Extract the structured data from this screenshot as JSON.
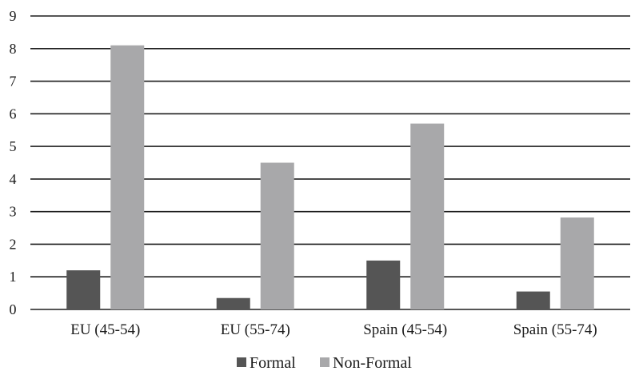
{
  "chart_data": {
    "type": "bar",
    "title": "",
    "xlabel": "",
    "ylabel": "",
    "categories": [
      "EU (45-54)",
      "EU (55-74)",
      "Spain (45-54)",
      "Spain (55-74)"
    ],
    "series": [
      {
        "name": "Formal",
        "color": "#555555",
        "values": [
          1.2,
          0.35,
          1.5,
          0.55
        ]
      },
      {
        "name": "Non-Formal",
        "color": "#a8a8aa",
        "values": [
          8.1,
          4.5,
          5.7,
          2.82
        ]
      }
    ],
    "ylim": [
      0,
      9
    ],
    "yticks": [
      0,
      1,
      2,
      3,
      4,
      5,
      6,
      7,
      8,
      9
    ],
    "grid": true,
    "legend": "bottom"
  }
}
